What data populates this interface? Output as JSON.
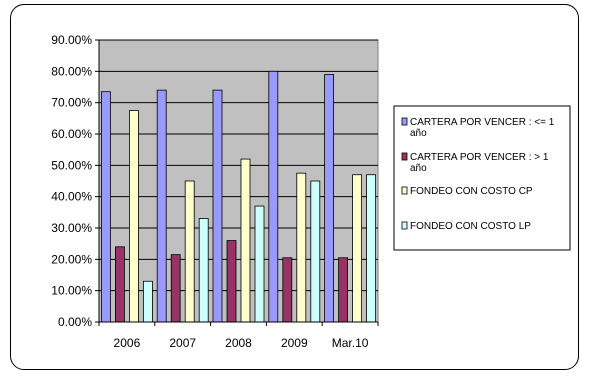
{
  "chart_data": {
    "type": "bar",
    "categories": [
      "2006",
      "2007",
      "2008",
      "2009",
      "Mar.10"
    ],
    "series": [
      {
        "name": "CARTERA POR VENCER : <= 1 año",
        "values": [
          73.5,
          74.0,
          74.0,
          80.0,
          79.0
        ],
        "color": "#9999ff"
      },
      {
        "name": "CARTERA POR VENCER :  > 1 año",
        "values": [
          24.0,
          21.5,
          26.0,
          20.5,
          20.5
        ],
        "color": "#993366"
      },
      {
        "name": "FONDEO CON COSTO  CP",
        "values": [
          67.5,
          45.0,
          52.0,
          47.5,
          47.0
        ],
        "color": "#ffffcc"
      },
      {
        "name": "FONDEO CON COSTO  LP",
        "values": [
          13.0,
          33.0,
          37.0,
          45.0,
          47.0
        ],
        "color": "#ccffff"
      }
    ],
    "yticks": [
      "0.00%",
      "10.00%",
      "20.00%",
      "30.00%",
      "40.00%",
      "50.00%",
      "60.00%",
      "70.00%",
      "80.00%",
      "90.00%"
    ],
    "ylim": [
      0,
      90
    ],
    "plot_background": "#c0c0c0",
    "grid": true,
    "legend_position": "right",
    "title": "",
    "xlabel": "",
    "ylabel": ""
  }
}
